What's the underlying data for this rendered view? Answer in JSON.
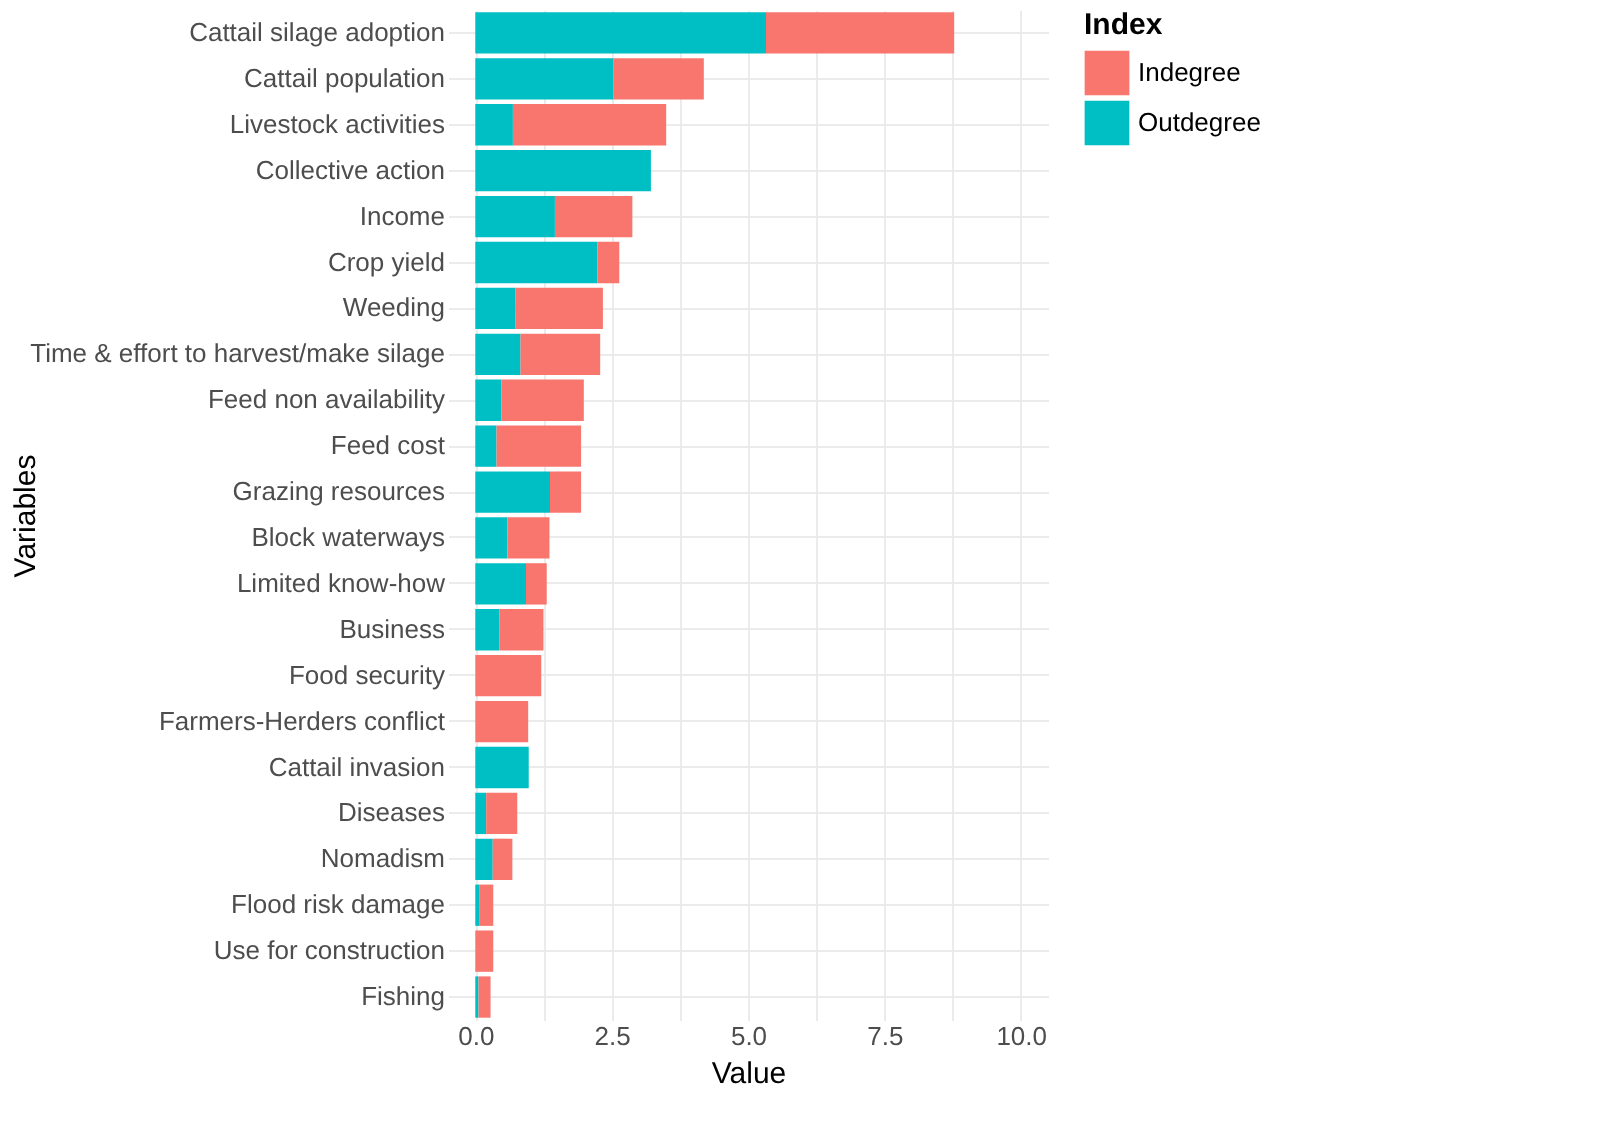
{
  "chart_data": {
    "type": "bar",
    "orientation": "horizontal",
    "stacked": true,
    "xlabel": "Value",
    "ylabel": "Variables",
    "legend_title": "Index",
    "legend": "right",
    "grid": true,
    "categories": [
      "Cattail silage adoption",
      "Cattail population",
      "Livestock activities",
      "Collective action",
      "Income",
      "Crop yield",
      "Weeding",
      "Time & effort to harvest/make silage",
      "Feed non availability",
      "Feed cost",
      "Grazing resources",
      "Block waterways",
      "Limited know-how",
      "Business",
      "Food security",
      "Farmers-Herders conflict",
      "Cattail invasion",
      "Diseases",
      "Nomadism",
      "Flood risk damage",
      "Use for construction",
      "Fishing"
    ],
    "series": [
      {
        "name": "Outdegree",
        "color": "#00bfc4",
        "values": [
          5.33,
          2.53,
          0.69,
          3.22,
          1.46,
          2.24,
          0.74,
          0.83,
          0.48,
          0.39,
          1.37,
          0.59,
          0.93,
          0.44,
          null,
          null,
          0.98,
          0.2,
          0.32,
          0.07,
          null,
          0.06
        ]
      },
      {
        "name": "Indegree",
        "color": "#f8766d",
        "values": [
          3.45,
          1.66,
          2.81,
          null,
          1.42,
          0.4,
          1.6,
          1.46,
          1.51,
          1.55,
          0.57,
          0.77,
          0.38,
          0.81,
          1.21,
          0.97,
          null,
          0.57,
          0.36,
          0.26,
          0.33,
          0.22
        ]
      }
    ],
    "xlim": [
      -0.5,
      10.5
    ],
    "xticks": [
      {
        "value": 0,
        "label": "0.0"
      },
      {
        "value": 1.25,
        "label": null
      },
      2.5,
      {
        "value": 3.75,
        "label": null
      },
      {
        "value": 5,
        "label": "5.0"
      },
      {
        "value": 6.25,
        "label": null
      },
      7.5,
      {
        "value": 8.75,
        "label": null
      },
      {
        "value": 10,
        "label": "10.0"
      }
    ]
  }
}
